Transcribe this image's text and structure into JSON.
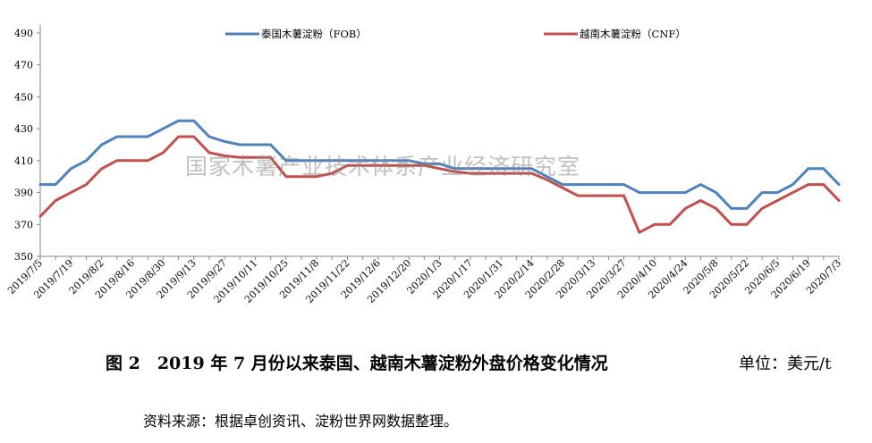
{
  "chart_data": {
    "type": "line",
    "ylim": [
      350,
      495
    ],
    "yticks": [
      350,
      370,
      390,
      410,
      430,
      450,
      470,
      490
    ],
    "categories": [
      "2019/7/5",
      "2019/7/12",
      "2019/7/19",
      "2019/7/26",
      "2019/8/2",
      "2019/8/9",
      "2019/8/16",
      "2019/8/23",
      "2019/8/30",
      "2019/9/6",
      "2019/9/13",
      "2019/9/20",
      "2019/9/27",
      "2019/10/4",
      "2019/10/11",
      "2019/10/18",
      "2019/10/25",
      "2019/11/1",
      "2019/11/8",
      "2019/11/15",
      "2019/11/22",
      "2019/11/29",
      "2019/12/6",
      "2019/12/13",
      "2019/12/20",
      "2019/12/27",
      "2020/1/3",
      "2020/1/10",
      "2020/1/17",
      "2020/1/24",
      "2020/1/31",
      "2020/2/7",
      "2020/2/14",
      "2020/2/21",
      "2020/2/28",
      "2020/3/6",
      "2020/3/13",
      "2020/3/20",
      "2020/3/27",
      "2020/4/3",
      "2020/4/10",
      "2020/4/17",
      "2020/4/24",
      "2020/5/1",
      "2020/5/8",
      "2020/5/15",
      "2020/5/22",
      "2020/5/29",
      "2020/6/5",
      "2020/6/12",
      "2020/6/19",
      "2020/6/26",
      "2020/7/3"
    ],
    "xticklabels": [
      "2019/7/5",
      "2019/7/19",
      "2019/8/2",
      "2019/8/16",
      "2019/8/30",
      "2019/9/13",
      "2019/9/27",
      "2019/10/11",
      "2019/10/25",
      "2019/11/8",
      "2019/11/22",
      "2019/12/6",
      "2019/12/20",
      "2020/1/3",
      "2020/1/17",
      "2020/1/31",
      "2020/2/14",
      "2020/2/28",
      "2020/3/13",
      "2020/3/27",
      "2020/4/10",
      "2020/4/24",
      "2020/5/8",
      "2020/5/22",
      "2020/6/5",
      "2020/6/19",
      "2020/7/3"
    ],
    "series": [
      {
        "name": "泰国木薯淀粉（FOB）",
        "color": "#4f81bd",
        "values": [
          395,
          395,
          405,
          410,
          420,
          425,
          425,
          425,
          430,
          435,
          435,
          425,
          422,
          420,
          420,
          420,
          410,
          410,
          410,
          410,
          410,
          410,
          410,
          410,
          410,
          408,
          408,
          405,
          405,
          405,
          405,
          405,
          405,
          400,
          395,
          395,
          395,
          395,
          395,
          390,
          390,
          390,
          390,
          395,
          390,
          380,
          380,
          390,
          390,
          395,
          405,
          405,
          395
        ]
      },
      {
        "name": "越南木薯淀粉（CNF）",
        "color": "#c0504d",
        "values": [
          375,
          385,
          390,
          395,
          405,
          410,
          410,
          410,
          415,
          425,
          425,
          415,
          413,
          412,
          412,
          412,
          400,
          400,
          400,
          402,
          407,
          407,
          407,
          407,
          407,
          407,
          405,
          403,
          402,
          402,
          402,
          402,
          402,
          398,
          393,
          388,
          388,
          388,
          388,
          365,
          370,
          370,
          380,
          385,
          380,
          370,
          370,
          380,
          385,
          390,
          395,
          395,
          385
        ]
      }
    ]
  },
  "watermark": "国家木薯产业技术体系产业经济研究室",
  "caption": {
    "figure": "图 2　2019 年 7 月份以来泰国、越南木薯淀粉外盘价格变化情况",
    "unit": "单位：美元/t"
  },
  "source": "资料来源：根据卓创资讯、淀粉世界网数据整理。"
}
